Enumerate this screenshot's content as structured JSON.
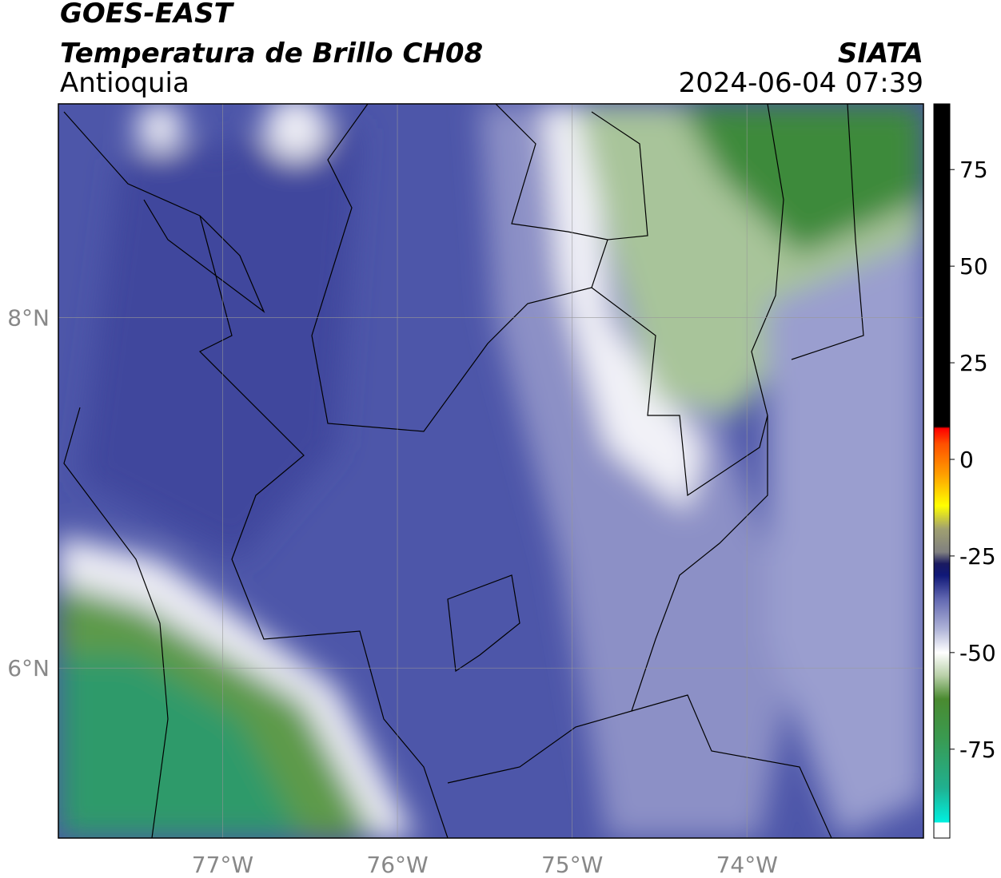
{
  "header": {
    "title": "GOES-EAST",
    "subtitle": "Temperatura de Brillo CH08",
    "region": "Antioquia",
    "source": "SIATA",
    "timestamp": "2024-06-04 07:39"
  },
  "map": {
    "xlim": [
      -77.94,
      -72.99
    ],
    "ylim": [
      5.03,
      9.22
    ],
    "xticks": [
      {
        "value": -77,
        "label": "77°W"
      },
      {
        "value": -76,
        "label": "76°W"
      },
      {
        "value": -75,
        "label": "75°W"
      },
      {
        "value": -74,
        "label": "74°W"
      }
    ],
    "yticks": [
      {
        "value": 6,
        "label": "6°N"
      },
      {
        "value": 8,
        "label": "8°N"
      }
    ],
    "grid": true
  },
  "colorbar": {
    "lim": [
      -98,
      92
    ],
    "ticks": [
      -75,
      -50,
      -25,
      0,
      25,
      50,
      75
    ],
    "colors": [
      {
        "value": -98,
        "color": "#ffffff"
      },
      {
        "value": -94,
        "color": "#ffffff"
      },
      {
        "value": -94,
        "color": "#00f0e0"
      },
      {
        "value": -85,
        "color": "#20b090"
      },
      {
        "value": -72,
        "color": "#3a9a50"
      },
      {
        "value": -62,
        "color": "#4a8a30"
      },
      {
        "value": -56,
        "color": "#b8d0a8"
      },
      {
        "value": -50,
        "color": "#ffffff"
      },
      {
        "value": -44,
        "color": "#b0b4d8"
      },
      {
        "value": -36,
        "color": "#6066b0"
      },
      {
        "value": -30,
        "color": "#101878"
      },
      {
        "value": -27,
        "color": "#1a1a60"
      },
      {
        "value": -24,
        "color": "#808080"
      },
      {
        "value": -18,
        "color": "#a0a070"
      },
      {
        "value": -12,
        "color": "#ffff00"
      },
      {
        "value": -4,
        "color": "#ffa000"
      },
      {
        "value": 4,
        "color": "#ff5000"
      },
      {
        "value": 8,
        "color": "#ff0000"
      },
      {
        "value": 8.5,
        "color": "#000000"
      },
      {
        "value": 92,
        "color": "#000000"
      }
    ]
  }
}
